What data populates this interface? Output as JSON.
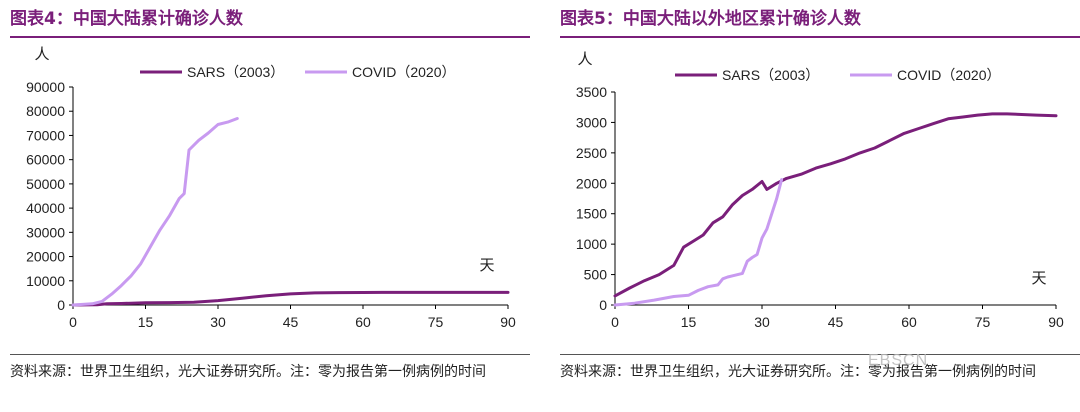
{
  "colors": {
    "sars": "#7a1f7a",
    "covid": "#c89af0",
    "title": "#7a1f7a",
    "axis": "#000000"
  },
  "left": {
    "title": "图表4：中国大陆累计确诊人数",
    "source": "资料来源：世界卫生组织，光大证券研究所。注：零为报告第一例病例的时间"
  },
  "right": {
    "title": "图表5：中国大陆以外地区累计确诊人数",
    "source": "资料来源：世界卫生组织，光大证券研究所。注：零为报告第一例病例的时间"
  },
  "watermark": "EBSCN",
  "chart_data": [
    {
      "type": "line",
      "ylabel": "人",
      "xlabel": "天",
      "xlim": [
        0,
        90
      ],
      "ylim": [
        0,
        90000
      ],
      "xticks": [
        0,
        15,
        30,
        45,
        60,
        75,
        90
      ],
      "yticks": [
        0,
        10000,
        20000,
        30000,
        40000,
        50000,
        60000,
        70000,
        80000,
        90000
      ],
      "legend": "top",
      "grid": false,
      "series": [
        {
          "name": "SARS（2003）",
          "color": "#7a1f7a",
          "x": [
            0,
            5,
            7,
            10,
            15,
            20,
            25,
            30,
            35,
            40,
            45,
            50,
            55,
            60,
            65,
            70,
            75,
            80,
            85,
            90
          ],
          "y": [
            0,
            100,
            500,
            600,
            900,
            1000,
            1100,
            1800,
            2800,
            3800,
            4600,
            5000,
            5100,
            5150,
            5200,
            5200,
            5200,
            5200,
            5200,
            5200
          ]
        },
        {
          "name": "COVID（2020）",
          "color": "#c89af0",
          "x": [
            0,
            4,
            6,
            8,
            10,
            12,
            14,
            16,
            18,
            20,
            22,
            23,
            24,
            26,
            28,
            30,
            32,
            34
          ],
          "y": [
            0,
            500,
            1500,
            4500,
            8000,
            12000,
            17000,
            24000,
            31000,
            37000,
            44000,
            46000,
            64000,
            68000,
            71000,
            74500,
            75500,
            77000
          ]
        }
      ]
    },
    {
      "type": "line",
      "ylabel": "人",
      "xlabel": "天",
      "xlim": [
        0,
        90
      ],
      "ylim": [
        0,
        3500
      ],
      "xticks": [
        0,
        15,
        30,
        45,
        60,
        75,
        90
      ],
      "yticks": [
        0,
        500,
        1000,
        1500,
        2000,
        2500,
        3000,
        3500
      ],
      "legend": "top",
      "grid": false,
      "series": [
        {
          "name": "SARS（2003）",
          "color": "#7a1f7a",
          "x": [
            0,
            3,
            6,
            9,
            12,
            14,
            16,
            18,
            20,
            22,
            24,
            26,
            28,
            30,
            31,
            33,
            35,
            38,
            41,
            44,
            47,
            50,
            53,
            56,
            59,
            62,
            65,
            68,
            71,
            74,
            77,
            80,
            83,
            86,
            90
          ],
          "y": [
            150,
            280,
            400,
            500,
            650,
            950,
            1050,
            1150,
            1350,
            1450,
            1650,
            1800,
            1900,
            2030,
            1900,
            2000,
            2080,
            2150,
            2250,
            2320,
            2400,
            2500,
            2580,
            2700,
            2820,
            2900,
            2980,
            3060,
            3090,
            3120,
            3140,
            3140,
            3130,
            3120,
            3110
          ]
        },
        {
          "name": "COVID（2020）",
          "color": "#c89af0",
          "x": [
            0,
            4,
            8,
            12,
            15,
            17,
            19,
            21,
            22,
            23,
            24,
            26,
            27,
            28,
            29,
            30,
            31,
            32,
            33,
            34
          ],
          "y": [
            0,
            30,
            80,
            140,
            160,
            240,
            300,
            330,
            430,
            460,
            480,
            520,
            720,
            780,
            830,
            1100,
            1250,
            1500,
            1750,
            2060
          ]
        }
      ]
    }
  ]
}
